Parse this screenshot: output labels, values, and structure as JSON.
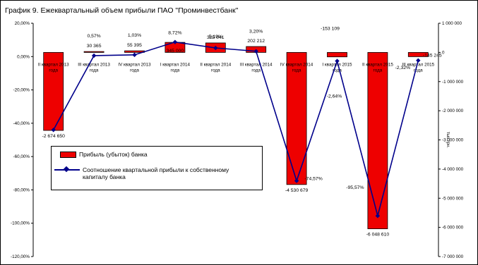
{
  "chart_data": {
    "type": "bar",
    "title": "График 9. Ежеквартальный объем прибыли ПАО \"Проминвестбанк\"",
    "categories": [
      [
        "II квартал 2013",
        "года"
      ],
      [
        "III квартал 2013",
        "года"
      ],
      [
        "IV квартал 2013",
        "года"
      ],
      [
        "I квартал 2014",
        "года"
      ],
      [
        "II квартал 2014",
        "года"
      ],
      [
        "III квартал 2014",
        "года"
      ],
      [
        "IV квартал 2014",
        "года"
      ],
      [
        "I квартал 2015",
        "года"
      ],
      [
        "II квартал 2015",
        "года"
      ],
      [
        "III квартал 2015",
        "года"
      ]
    ],
    "series": [
      {
        "name": "Прибыль (убыток)  банка",
        "type": "bar",
        "axis": "right",
        "color": "#ee0000",
        "values": [
          -2674650,
          30365,
          55395,
          345000,
          325041,
          202212,
          -4530679,
          -153109,
          -6048610,
          -145245
        ],
        "labels": [
          "-2 674 650",
          "30 365",
          "55 395",
          "345 000",
          "325 041",
          "202 212",
          "-4 530 679",
          "-153 109",
          "-6 048 610",
          "-145 245"
        ]
      },
      {
        "name": "Соотношение квартальной прибыли к собственному капиталу банка",
        "type": "line",
        "axis": "left",
        "color": "#00008b",
        "values": [
          -44.0,
          0.57,
          1.03,
          8.72,
          5.19,
          3.2,
          -74.57,
          -2.64,
          -95.57,
          -2.32
        ],
        "labels": [
          "",
          "0,57%",
          "1,03%",
          "8,72%",
          "5,19%",
          "3,20%",
          "-74,57%",
          "-2,64%",
          "-95,57%",
          "-2,32%"
        ]
      }
    ],
    "left_axis": {
      "ylim": [
        -120,
        20
      ],
      "ticks": [
        "20,00%",
        "0,00%",
        "-20,00%",
        "-40,00%",
        "-60,00%",
        "-80,00%",
        "-100,00%",
        "-120,00%"
      ]
    },
    "right_axis": {
      "ylim": [
        -7000000,
        1000000
      ],
      "ylabel": "тыс.грн.",
      "ticks": [
        "1 000 000",
        "0",
        "-1 000 000",
        "-2 000 000",
        "-3 000 000",
        "-4 000 000",
        "-5 000 000",
        "-6 000 000",
        "-7 000 000"
      ]
    },
    "grid": false,
    "legend": "lower-left"
  }
}
